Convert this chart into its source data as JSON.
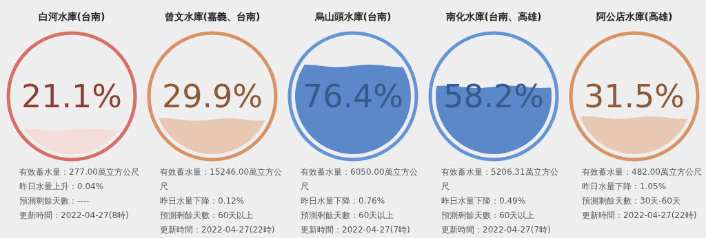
{
  "chart_data": [
    {
      "type": "other",
      "title": "白河水庫(台南)",
      "values": [
        21.1
      ],
      "value_labels": [
        "21.1%"
      ],
      "color": "#f3dcda",
      "annotations": [
        "有效蓄水量：277.00萬立方公尺",
        "昨日水量上升：0.04%",
        "預測剩餘天數：----",
        "更新時間：2022-04-27(8時)"
      ]
    },
    {
      "type": "other",
      "title": "曾文水庫(嘉義、台南)",
      "values": [
        29.9
      ],
      "value_labels": [
        "29.9%"
      ],
      "color": "#e8c8b3",
      "annotations": [
        "有效蓄水量：15246.00萬立方公尺",
        "昨日水量下降：0.12%",
        "預測剩餘天數：60天以上",
        "更新時間：2022-04-27(22時)"
      ]
    },
    {
      "type": "other",
      "title": "烏山頭水庫(台南)",
      "values": [
        76.4
      ],
      "value_labels": [
        "76.4%"
      ],
      "color": "#5b88c8",
      "annotations": [
        "有效蓄水量：6050.00萬立方公尺",
        "昨日水量下降：0.76%",
        "預測剩餘天數：60天以上",
        "更新時間：2022-04-27(7時)"
      ]
    },
    {
      "type": "other",
      "title": "南化水庫(台南、高雄)",
      "values": [
        58.2
      ],
      "value_labels": [
        "58.2%"
      ],
      "color": "#5b88c8",
      "annotations": [
        "有效蓄水量：5206.31萬立方公尺",
        "昨日水量下降：0.49%",
        "預測剩餘天數：60天以上",
        "更新時間：2022-04-27(7時)"
      ]
    },
    {
      "type": "other",
      "title": "阿公店水庫(高雄)",
      "values": [
        31.5
      ],
      "value_labels": [
        "31.5%"
      ],
      "color": "#e8c8b3",
      "annotations": [
        "有效蓄水量：482.00萬立方公尺",
        "昨日水量下降：1.05%",
        "預測剩餘天數：30天-60天",
        "更新時間：2022-04-27(22時)"
      ]
    }
  ]
}
